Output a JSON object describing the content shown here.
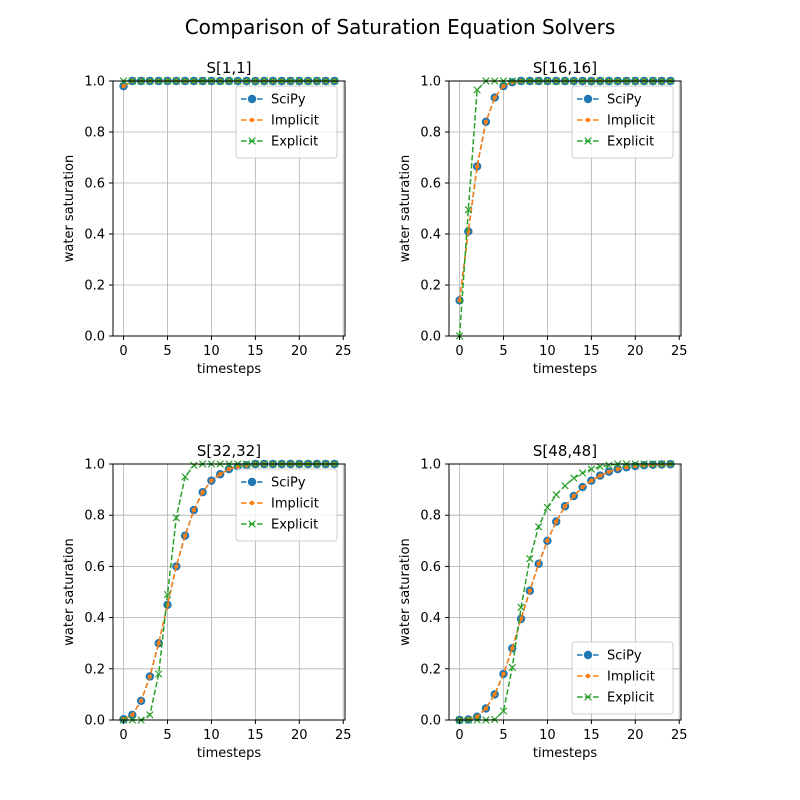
{
  "figure": {
    "title": "Comparison of Saturation Equation Solvers"
  },
  "colors": {
    "scipy": "#1f77b4",
    "implicit": "#ff7f0e",
    "explicit": "#2ca02c",
    "grid": "#b0b0b0"
  },
  "chart_data": [
    {
      "type": "line",
      "title": "S[1,1]",
      "xlabel": "timesteps",
      "ylabel": "water saturation",
      "xlim": [
        -1.2,
        25.2
      ],
      "ylim": [
        0,
        1
      ],
      "xticks": [
        0,
        5,
        10,
        15,
        20,
        25
      ],
      "yticks": [
        0.0,
        0.2,
        0.4,
        0.6,
        0.8,
        1.0
      ],
      "grid": true,
      "legend_position": "top-right",
      "x": [
        0,
        1,
        2,
        3,
        4,
        5,
        6,
        7,
        8,
        9,
        10,
        11,
        12,
        13,
        14,
        15,
        16,
        17,
        18,
        19,
        20,
        21,
        22,
        23,
        24
      ],
      "series": [
        {
          "name": "SciPy",
          "marker": "circle",
          "values": [
            0.98,
            1,
            1,
            1,
            1,
            1,
            1,
            1,
            1,
            1,
            1,
            1,
            1,
            1,
            1,
            1,
            1,
            1,
            1,
            1,
            1,
            1,
            1,
            1,
            1
          ]
        },
        {
          "name": "Implicit",
          "marker": "dot",
          "values": [
            0.98,
            1,
            1,
            1,
            1,
            1,
            1,
            1,
            1,
            1,
            1,
            1,
            1,
            1,
            1,
            1,
            1,
            1,
            1,
            1,
            1,
            1,
            1,
            1,
            1
          ]
        },
        {
          "name": "Explicit",
          "marker": "x",
          "values": [
            1,
            1,
            1,
            1,
            1,
            1,
            1,
            1,
            1,
            1,
            1,
            1,
            1,
            1,
            1,
            1,
            1,
            1,
            1,
            1,
            1,
            1,
            1,
            1,
            1
          ]
        }
      ]
    },
    {
      "type": "line",
      "title": "S[16,16]",
      "xlabel": "timesteps",
      "ylabel": "water saturation",
      "xlim": [
        -1.2,
        25.2
      ],
      "ylim": [
        0,
        1
      ],
      "xticks": [
        0,
        5,
        10,
        15,
        20,
        25
      ],
      "yticks": [
        0.0,
        0.2,
        0.4,
        0.6,
        0.8,
        1.0
      ],
      "grid": true,
      "legend_position": "top-right",
      "x": [
        0,
        1,
        2,
        3,
        4,
        5,
        6,
        7,
        8,
        9,
        10,
        11,
        12,
        13,
        14,
        15,
        16,
        17,
        18,
        19,
        20,
        21,
        22,
        23,
        24
      ],
      "series": [
        {
          "name": "SciPy",
          "marker": "circle",
          "values": [
            0.14,
            0.41,
            0.665,
            0.84,
            0.935,
            0.98,
            0.995,
            1,
            1,
            1,
            1,
            1,
            1,
            1,
            1,
            1,
            1,
            1,
            1,
            1,
            1,
            1,
            1,
            1,
            1
          ]
        },
        {
          "name": "Implicit",
          "marker": "dot",
          "values": [
            0.14,
            0.41,
            0.665,
            0.84,
            0.935,
            0.98,
            0.995,
            1,
            1,
            1,
            1,
            1,
            1,
            1,
            1,
            1,
            1,
            1,
            1,
            1,
            1,
            1,
            1,
            1,
            1
          ]
        },
        {
          "name": "Explicit",
          "marker": "x",
          "values": [
            0.0,
            0.495,
            0.965,
            1.0,
            1.0,
            1,
            1,
            1,
            1,
            1,
            1,
            1,
            1,
            1,
            1,
            1,
            1,
            1,
            1,
            1,
            1,
            1,
            1,
            1,
            1
          ]
        }
      ]
    },
    {
      "type": "line",
      "title": "S[32,32]",
      "xlabel": "timesteps",
      "ylabel": "water saturation",
      "xlim": [
        -1.2,
        25.2
      ],
      "ylim": [
        0,
        1
      ],
      "xticks": [
        0,
        5,
        10,
        15,
        20,
        25
      ],
      "yticks": [
        0.0,
        0.2,
        0.4,
        0.6,
        0.8,
        1.0
      ],
      "grid": true,
      "legend_position": "top-right",
      "x": [
        0,
        1,
        2,
        3,
        4,
        5,
        6,
        7,
        8,
        9,
        10,
        11,
        12,
        13,
        14,
        15,
        16,
        17,
        18,
        19,
        20,
        21,
        22,
        23,
        24
      ],
      "series": [
        {
          "name": "SciPy",
          "marker": "circle",
          "values": [
            0.003,
            0.02,
            0.075,
            0.17,
            0.3,
            0.45,
            0.6,
            0.72,
            0.82,
            0.89,
            0.935,
            0.96,
            0.98,
            0.99,
            0.995,
            1,
            1,
            1,
            1,
            1,
            1,
            1,
            1,
            1,
            1
          ]
        },
        {
          "name": "Implicit",
          "marker": "dot",
          "values": [
            0.003,
            0.02,
            0.075,
            0.17,
            0.3,
            0.45,
            0.6,
            0.72,
            0.82,
            0.89,
            0.935,
            0.96,
            0.98,
            0.99,
            0.995,
            1,
            1,
            1,
            1,
            1,
            1,
            1,
            1,
            1,
            1
          ]
        },
        {
          "name": "Explicit",
          "marker": "x",
          "values": [
            0.0,
            0.0,
            0.0,
            0.02,
            0.18,
            0.49,
            0.79,
            0.95,
            0.995,
            1,
            1,
            1,
            1,
            1,
            1,
            1,
            1,
            1,
            1,
            1,
            1,
            1,
            1,
            1,
            1
          ]
        }
      ]
    },
    {
      "type": "line",
      "title": "S[48,48]",
      "xlabel": "timesteps",
      "ylabel": "water saturation",
      "xlim": [
        -1.2,
        25.2
      ],
      "ylim": [
        0,
        1
      ],
      "xticks": [
        0,
        5,
        10,
        15,
        20,
        25
      ],
      "yticks": [
        0.0,
        0.2,
        0.4,
        0.6,
        0.8,
        1.0
      ],
      "grid": true,
      "legend_position": "bottom-right",
      "x": [
        0,
        1,
        2,
        3,
        4,
        5,
        6,
        7,
        8,
        9,
        10,
        11,
        12,
        13,
        14,
        15,
        16,
        17,
        18,
        19,
        20,
        21,
        22,
        23,
        24
      ],
      "series": [
        {
          "name": "SciPy",
          "marker": "circle",
          "values": [
            0.0,
            0.002,
            0.013,
            0.045,
            0.1,
            0.18,
            0.28,
            0.395,
            0.505,
            0.61,
            0.7,
            0.775,
            0.835,
            0.875,
            0.91,
            0.935,
            0.955,
            0.97,
            0.98,
            0.987,
            0.992,
            0.995,
            0.997,
            0.998,
            0.999
          ]
        },
        {
          "name": "Implicit",
          "marker": "dot",
          "values": [
            0.0,
            0.002,
            0.013,
            0.045,
            0.1,
            0.18,
            0.28,
            0.395,
            0.505,
            0.61,
            0.7,
            0.775,
            0.835,
            0.875,
            0.91,
            0.935,
            0.955,
            0.97,
            0.98,
            0.987,
            0.992,
            0.995,
            0.997,
            0.998,
            0.999
          ]
        },
        {
          "name": "Explicit",
          "marker": "x",
          "values": [
            0.0,
            0.0,
            0.0,
            0.0,
            0.002,
            0.035,
            0.205,
            0.44,
            0.63,
            0.755,
            0.83,
            0.88,
            0.915,
            0.945,
            0.965,
            0.98,
            0.99,
            0.995,
            1,
            1,
            1,
            1,
            1,
            1,
            1
          ]
        }
      ]
    }
  ]
}
